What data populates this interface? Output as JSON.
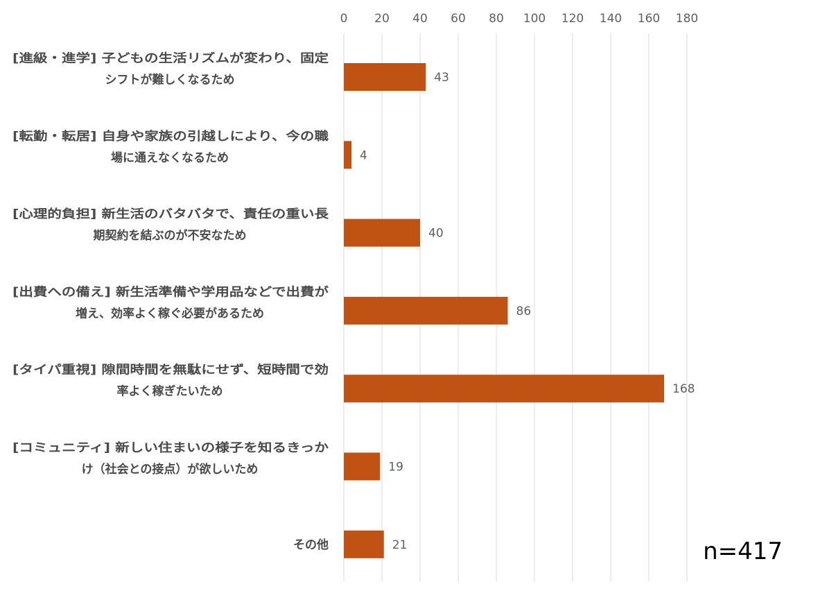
{
  "chart_data": {
    "type": "bar",
    "orientation": "horizontal",
    "categories": [
      [
        "[進級・進学] 子どもの生活リズムが変わり、固定",
        "シフトが難しくなるため"
      ],
      [
        "[転勤・転居] 自身や家族の引越しにより、今の職",
        "場に通えなくなるため"
      ],
      [
        "[心理的負担] 新生活のバタバタで、責任の重い長",
        "期契約を結ぶのが不安なため"
      ],
      [
        "[出費への備え] 新生活準備や学用品などで出費が",
        "増え、効率よく稼ぐ必要があるため"
      ],
      [
        "[タイパ重視] 隙間時間を無駄にせず、短時間で効",
        "率よく稼ぎたいため"
      ],
      [
        "[コミュニティ] 新しい住まいの様子を知るきっか",
        "け（社会との接点）が欲しいため"
      ],
      [
        "その他"
      ]
    ],
    "values": [
      43,
      4,
      40,
      86,
      168,
      19,
      21
    ],
    "xlim": [
      0,
      180
    ],
    "x_ticks": [
      0,
      20,
      40,
      60,
      80,
      100,
      120,
      140,
      160,
      180
    ],
    "x_axis_position": "top",
    "grid": true,
    "bar_color": "#c05214",
    "data_labels": true,
    "annotation": "n=417"
  }
}
